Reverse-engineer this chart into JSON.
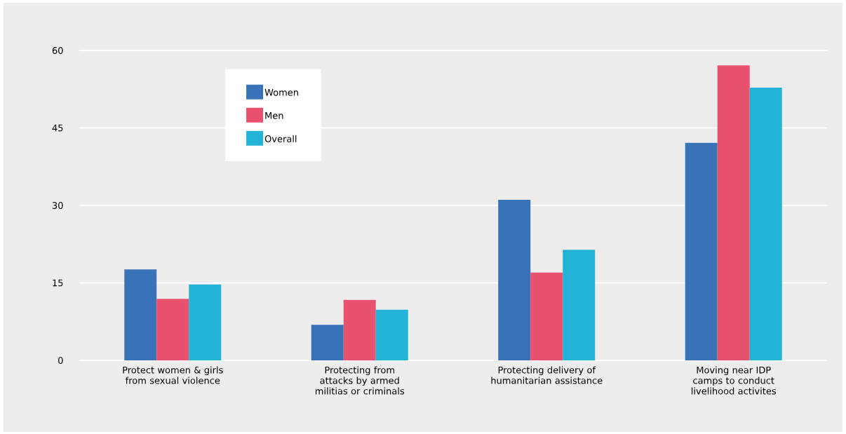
{
  "chart_data": {
    "type": "bar",
    "categories": [
      "Protect women & girls from sexual violence",
      "Protecting from attacks by armed militias or criminals",
      "Protecting delivery of humanitarian assistance",
      "Moving near IDP camps to conduct livelihood activites"
    ],
    "series": [
      {
        "name": "Women",
        "color": "#3a72b8",
        "values": [
          17.6,
          6.9,
          31.1,
          42.1
        ]
      },
      {
        "name": "Men",
        "color": "#e9526f",
        "values": [
          11.9,
          11.7,
          17.0,
          57.1
        ]
      },
      {
        "name": "Overall",
        "color": "#23b3d6",
        "values": [
          14.7,
          9.8,
          21.4,
          52.8
        ]
      }
    ],
    "ylim": [
      0,
      60
    ],
    "yticks": [
      0,
      15,
      30,
      45,
      60
    ],
    "grid": "y",
    "legend": "top left"
  }
}
